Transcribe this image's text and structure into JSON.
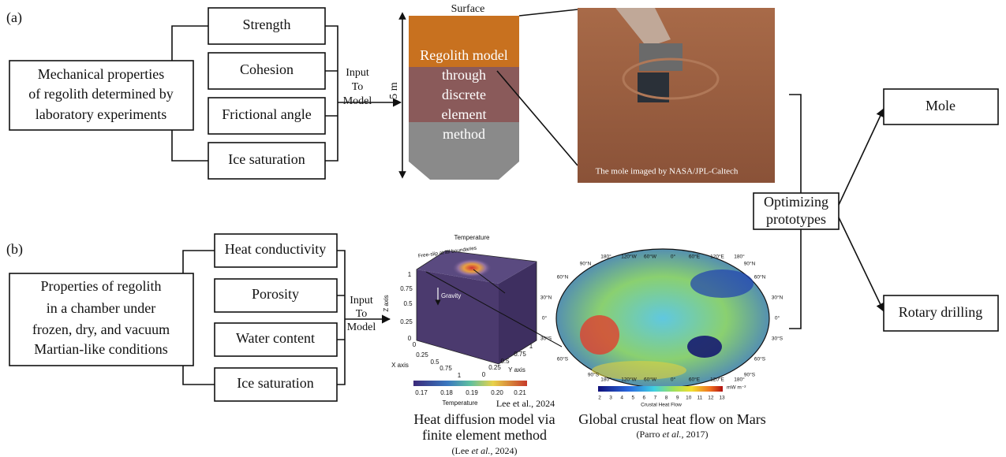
{
  "panel_a": {
    "label": "(a)",
    "source": [
      "Mechanical properties",
      "of regolith determined by",
      "laboratory experiments"
    ],
    "properties": [
      "Strength",
      "Cohesion",
      "Frictional angle",
      "Ice saturation"
    ],
    "arrow_label": [
      "Input",
      "To",
      "Model"
    ],
    "model": {
      "top_label": "Surface",
      "depth": "5 m",
      "lines": [
        "Regolith model",
        "through",
        "discrete",
        "element",
        "method"
      ]
    },
    "photo_caption": "The mole imaged by NASA/JPL-Caltech"
  },
  "panel_b": {
    "label": "(b)",
    "source": [
      "Properties of regolith",
      "in a chamber under",
      "frozen, dry, and vacuum",
      "Martian-like conditions"
    ],
    "properties": [
      "Heat conductivity",
      "Porosity",
      "Water content",
      "Ice saturation"
    ],
    "arrow_label": [
      "Input",
      "To",
      "Model"
    ],
    "fem": {
      "title": "Temperature",
      "boundary": "Free-slip at all boundaries",
      "gravity": "Gravity",
      "z_axis": "Z axis",
      "z_ticks": [
        "1",
        "0.75",
        "0.5",
        "0.25",
        "0"
      ],
      "x_axis": "X axis",
      "x_ticks": [
        "0",
        "0.25",
        "0.5",
        "0.75",
        "1"
      ],
      "y_axis": "Y axis",
      "y_ticks": [
        "0",
        "0.25",
        "0.5",
        "0.75",
        "1"
      ],
      "colorbar_ticks": [
        "0.17",
        "0.18",
        "0.19",
        "0.20",
        "0.21"
      ],
      "colorbar_label": "Temperature",
      "credit": "Lee et al., 2024",
      "caption": [
        "Heat diffusion model via",
        "finite element method"
      ],
      "citation": {
        "pre": "(Lee ",
        "italic": "et al.,",
        "post": " 2024)"
      }
    },
    "map": {
      "longitudes": [
        "180°",
        "120°W",
        "60°W",
        "0°",
        "60°E",
        "120°E",
        "180°"
      ],
      "latitudes": [
        "90°N",
        "60°N",
        "30°N",
        "0°",
        "30°S",
        "60°S",
        "90°S"
      ],
      "colorbar_ticks": [
        "2",
        "3",
        "4",
        "5",
        "6",
        "7",
        "8",
        "9",
        "10",
        "11",
        "12",
        "13"
      ],
      "colorbar_unit": "mW m⁻²",
      "colorbar_label": "Crustal Heat Flow",
      "caption": "Global crustal heat flow on Mars",
      "citation": {
        "pre": "(Parro ",
        "italic": "et al.,",
        "post": " 2017)"
      }
    }
  },
  "optimizing": [
    "Optimizing",
    "prototypes"
  ],
  "outputs": [
    "Mole",
    "Rotary drilling"
  ]
}
